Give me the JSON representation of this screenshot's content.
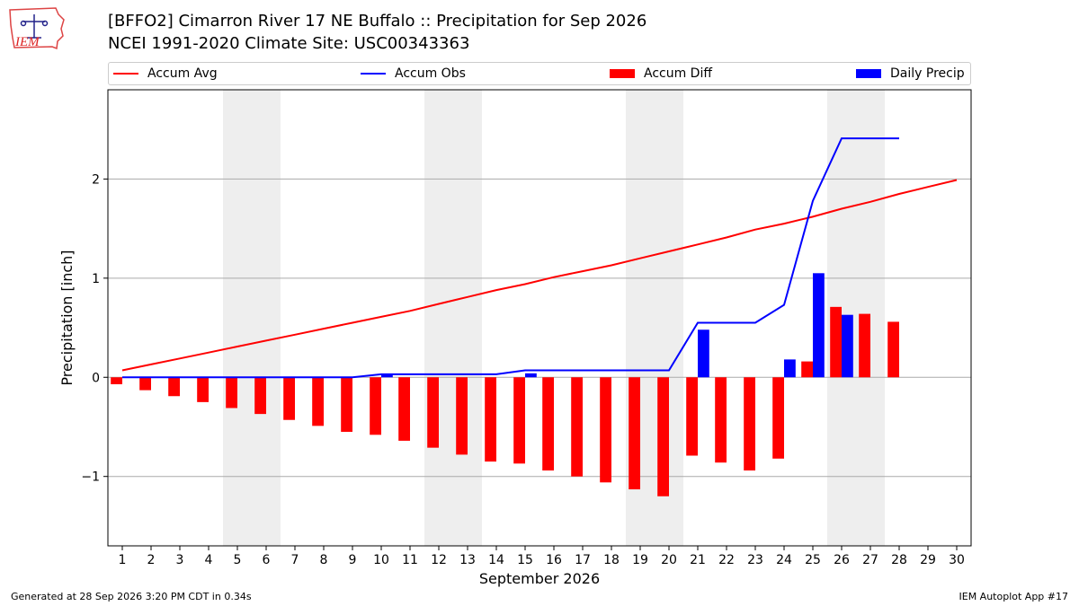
{
  "header": {
    "title_line1": "[BFFO2] Cimarron River 17 NE Buffalo :: Precipitation for Sep 2026",
    "title_line2": "NCEI 1991-2020 Climate Site: USC00343363",
    "logo_text": "IEM"
  },
  "footer": {
    "generated": "Generated at 28 Sep 2026 3:20 PM CDT in 0.34s",
    "app": "IEM Autoplot App #17"
  },
  "legend": {
    "accum_avg": "Accum Avg",
    "accum_obs": "Accum Obs",
    "accum_diff": "Accum Diff",
    "daily_precip": "Daily Precip"
  },
  "colors": {
    "accum_avg": "#ff0000",
    "accum_obs": "#0000ff",
    "accum_diff": "#ff0000",
    "daily_precip": "#0000ff",
    "weekend_shade": "#eeeeee",
    "grid": "#aaaaaa"
  },
  "chart_data": {
    "type": "bar",
    "xlabel": "September 2026",
    "ylabel": "Precipitation [inch]",
    "ylim": [
      -1.7,
      2.9
    ],
    "xlim": [
      0.5,
      30.5
    ],
    "yticks": [
      -1,
      0,
      1,
      2
    ],
    "ytick_labels": [
      "−1",
      "0",
      "1",
      "2"
    ],
    "days": [
      1,
      2,
      3,
      4,
      5,
      6,
      7,
      8,
      9,
      10,
      11,
      12,
      13,
      14,
      15,
      16,
      17,
      18,
      19,
      20,
      21,
      22,
      23,
      24,
      25,
      26,
      27,
      28,
      29,
      30
    ],
    "weekend_days": [
      5,
      6,
      12,
      13,
      19,
      20,
      26,
      27
    ],
    "grid": true,
    "legend_position": "top",
    "series": [
      {
        "name": "Accum Avg",
        "kind": "line",
        "days": [
          1,
          2,
          3,
          4,
          5,
          6,
          7,
          8,
          9,
          10,
          11,
          12,
          13,
          14,
          15,
          16,
          17,
          18,
          19,
          20,
          21,
          22,
          23,
          24,
          25,
          26,
          27,
          28,
          29,
          30
        ],
        "values": [
          0.07,
          0.13,
          0.19,
          0.25,
          0.31,
          0.37,
          0.43,
          0.49,
          0.55,
          0.61,
          0.67,
          0.74,
          0.81,
          0.88,
          0.94,
          1.01,
          1.07,
          1.13,
          1.2,
          1.27,
          1.34,
          1.41,
          1.49,
          1.55,
          1.62,
          1.7,
          1.77,
          1.85,
          1.92,
          1.99
        ]
      },
      {
        "name": "Accum Obs",
        "kind": "line",
        "days": [
          1,
          2,
          3,
          4,
          5,
          6,
          7,
          8,
          9,
          10,
          11,
          12,
          13,
          14,
          15,
          16,
          17,
          18,
          19,
          20,
          21,
          22,
          23,
          24,
          25,
          26,
          27,
          28
        ],
        "values": [
          0.0,
          0.0,
          0.0,
          0.0,
          0.0,
          0.0,
          0.0,
          0.0,
          0.0,
          0.03,
          0.03,
          0.03,
          0.03,
          0.03,
          0.07,
          0.07,
          0.07,
          0.07,
          0.07,
          0.07,
          0.55,
          0.55,
          0.55,
          0.73,
          1.78,
          2.41,
          2.41,
          2.41
        ]
      },
      {
        "name": "Accum Diff",
        "kind": "bar",
        "days": [
          1,
          2,
          3,
          4,
          5,
          6,
          7,
          8,
          9,
          10,
          11,
          12,
          13,
          14,
          15,
          16,
          17,
          18,
          19,
          20,
          21,
          22,
          23,
          24,
          25,
          26,
          27,
          28
        ],
        "values": [
          -0.07,
          -0.13,
          -0.19,
          -0.25,
          -0.31,
          -0.37,
          -0.43,
          -0.49,
          -0.55,
          -0.58,
          -0.64,
          -0.71,
          -0.78,
          -0.85,
          -0.87,
          -0.94,
          -1.0,
          -1.06,
          -1.13,
          -1.2,
          -0.79,
          -0.86,
          -0.94,
          -0.82,
          0.16,
          0.71,
          0.64,
          0.56
        ]
      },
      {
        "name": "Daily Precip",
        "kind": "bar",
        "days": [
          10,
          15,
          21,
          24,
          25,
          26
        ],
        "values": [
          0.03,
          0.04,
          0.48,
          0.18,
          1.05,
          0.63
        ]
      }
    ]
  }
}
